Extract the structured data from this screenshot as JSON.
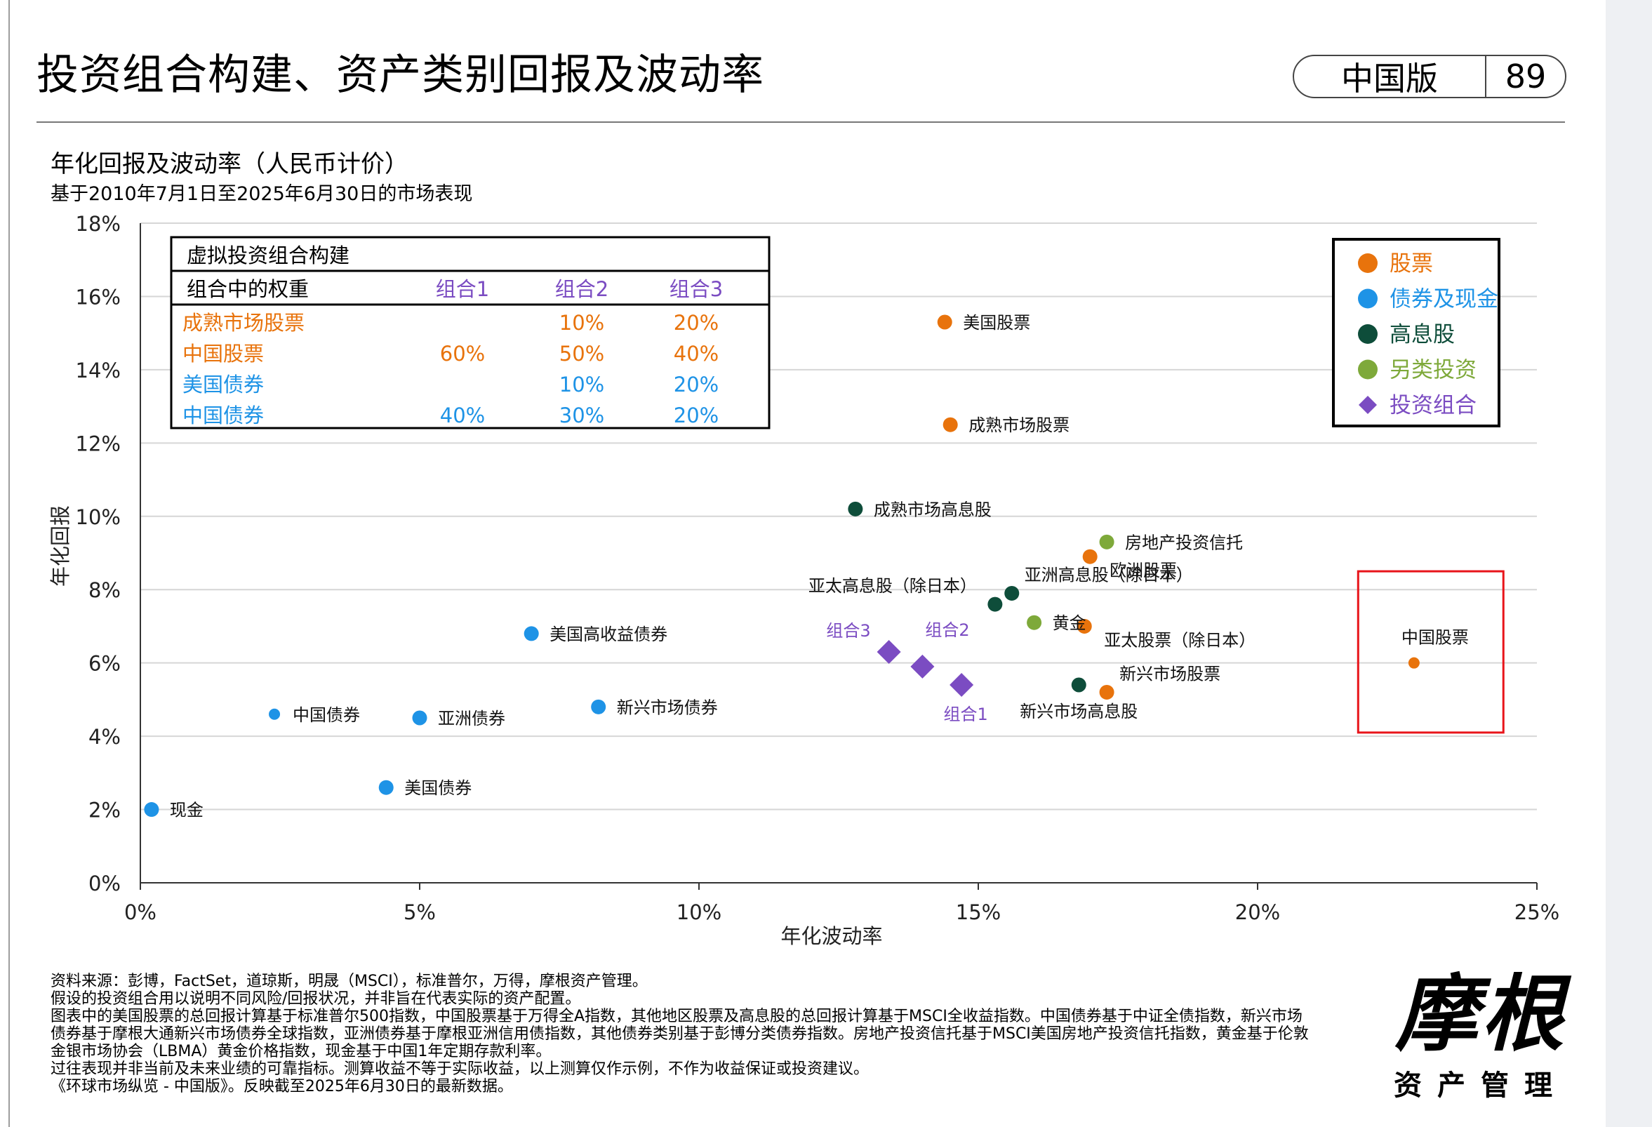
{
  "header": {
    "title": "投资组合构建、资产类别回报及波动率",
    "edition": "中国版",
    "page_number": "89"
  },
  "colors": {
    "equity": "#e8730c",
    "bond": "#1e93e6",
    "dividend": "#0e4d3a",
    "alternative": "#7ea93a",
    "portfolio": "#7b4cc2",
    "highlight": "#e8141a"
  },
  "chart_data": {
    "type": "scatter",
    "title": "年化回报及波动率（人民币计价）",
    "subtitle": "基于2010年7月1日至2025年6月30日的市场表现",
    "xlabel": "年化波动率",
    "ylabel": "年化回报",
    "xlim": [
      0,
      25
    ],
    "ylim": [
      0,
      18
    ],
    "x_ticks": [
      0,
      5,
      10,
      15,
      20,
      25
    ],
    "y_ticks": [
      0,
      2,
      4,
      6,
      8,
      10,
      12,
      14,
      16,
      18
    ],
    "x_tick_labels": [
      "0%",
      "5%",
      "10%",
      "15%",
      "20%",
      "25%"
    ],
    "y_tick_labels": [
      "0%",
      "2%",
      "4%",
      "6%",
      "8%",
      "10%",
      "12%",
      "14%",
      "16%",
      "18%"
    ],
    "grid": "horizontal",
    "legend_position": "top-right",
    "legend": [
      {
        "label": "股票",
        "color": "equity",
        "shape": "circle"
      },
      {
        "label": "债券及现金",
        "color": "bond",
        "shape": "circle"
      },
      {
        "label": "高息股",
        "color": "dividend",
        "shape": "circle"
      },
      {
        "label": "另类投资",
        "color": "alternative",
        "shape": "circle"
      },
      {
        "label": "投资组合",
        "color": "portfolio",
        "shape": "diamond"
      }
    ],
    "points": [
      {
        "label": "美国股票",
        "x": 14.4,
        "y": 15.3,
        "group": "equity",
        "label_side": "right"
      },
      {
        "label": "成熟市场股票",
        "x": 14.5,
        "y": 12.5,
        "group": "equity",
        "label_side": "right"
      },
      {
        "label": "欧洲股票",
        "x": 17.0,
        "y": 8.9,
        "group": "equity",
        "label_side": "below-right"
      },
      {
        "label": "亚太股票（除日本）",
        "x": 16.9,
        "y": 7.0,
        "group": "equity",
        "label_side": "below-right"
      },
      {
        "label": "新兴市场股票",
        "x": 17.3,
        "y": 5.2,
        "group": "equity",
        "label_side": "above-right"
      },
      {
        "label": "中国股票",
        "x": 22.8,
        "y": 6.0,
        "group": "equity",
        "label_side": "above",
        "small": true
      },
      {
        "label": "美国高收益债券",
        "x": 7.0,
        "y": 6.8,
        "group": "bond",
        "label_side": "right"
      },
      {
        "label": "新兴市场债券",
        "x": 8.2,
        "y": 4.8,
        "group": "bond",
        "label_side": "right"
      },
      {
        "label": "中国债券",
        "x": 2.4,
        "y": 4.6,
        "group": "bond",
        "label_side": "right",
        "small": true
      },
      {
        "label": "亚洲债券",
        "x": 5.0,
        "y": 4.5,
        "group": "bond",
        "label_side": "right"
      },
      {
        "label": "美国债券",
        "x": 4.4,
        "y": 2.6,
        "group": "bond",
        "label_side": "right"
      },
      {
        "label": "现金",
        "x": 0.2,
        "y": 2.0,
        "group": "bond",
        "label_side": "right"
      },
      {
        "label": "成熟市场高息股",
        "x": 12.8,
        "y": 10.2,
        "group": "dividend",
        "label_side": "right"
      },
      {
        "label": "亚洲高息股（除日本）",
        "x": 15.6,
        "y": 7.9,
        "group": "dividend",
        "label_side": "above-right"
      },
      {
        "label": "亚太高息股（除日本）",
        "x": 15.3,
        "y": 7.6,
        "group": "dividend",
        "label_side": "above-left"
      },
      {
        "label": "新兴市场高息股",
        "x": 16.8,
        "y": 5.4,
        "group": "dividend",
        "label_side": "below"
      },
      {
        "label": "房地产投资信托",
        "x": 17.3,
        "y": 9.3,
        "group": "alternative",
        "label_side": "right"
      },
      {
        "label": "黄金",
        "x": 16.0,
        "y": 7.1,
        "group": "alternative",
        "label_side": "right"
      },
      {
        "label": "组合3",
        "x": 13.4,
        "y": 6.3,
        "group": "portfolio",
        "label_side": "above-left"
      },
      {
        "label": "组合2",
        "x": 14.0,
        "y": 5.9,
        "group": "portfolio",
        "label_side": "above-right"
      },
      {
        "label": "组合1",
        "x": 14.7,
        "y": 5.4,
        "group": "portfolio",
        "label_side": "below"
      }
    ],
    "highlight_box": {
      "x_range": [
        21.8,
        24.4
      ],
      "y_range": [
        4.1,
        8.5
      ]
    },
    "weights_table": {
      "title": "虚拟投资组合构建",
      "header": [
        "组合中的权重",
        "组合1",
        "组合2",
        "组合3"
      ],
      "rows": [
        {
          "name": "成熟市场股票",
          "group": "equity",
          "values": [
            "",
            "10%",
            "20%"
          ]
        },
        {
          "name": "中国股票",
          "group": "equity",
          "values": [
            "60%",
            "50%",
            "40%"
          ]
        },
        {
          "name": "美国债券",
          "group": "bond",
          "values": [
            "",
            "10%",
            "20%"
          ]
        },
        {
          "name": "中国债券",
          "group": "bond",
          "values": [
            "40%",
            "30%",
            "20%"
          ]
        }
      ]
    }
  },
  "footnotes": [
    "资料来源：彭博，FactSet，道琼斯，明晟（MSCI），标准普尔，万得，摩根资产管理。",
    "假设的投资组合用以说明不同风险/回报状况，并非旨在代表实际的资产配置。",
    "图表中的美国股票的总回报计算基于标准普尔500指数，中国股票基于万得全A指数，其他地区股票及高息股的总回报计算基于MSCI全收益指数。中国债券基于中证全债指数，新兴市场",
    "债券基于摩根大通新兴市场债券全球指数，亚洲债券基于摩根亚洲信用债指数，其他债券类别基于彭博分类债券指数。房地产投资信托基于MSCI美国房地产投资信托指数，黄金基于伦敦",
    "金银市场协会（LBMA）黄金价格指数，现金基于中国1年定期存款利率。",
    "过往表现并非当前及未来业绩的可靠指标。测算收益不等于实际收益，以上测算仅作示例，不作为收益保证或投资建议。",
    "《环球市场纵览 - 中国版》。反映截至2025年6月30日的最新数据。"
  ],
  "brand": {
    "logo_text": "摩根",
    "tagline": "资产管理"
  }
}
